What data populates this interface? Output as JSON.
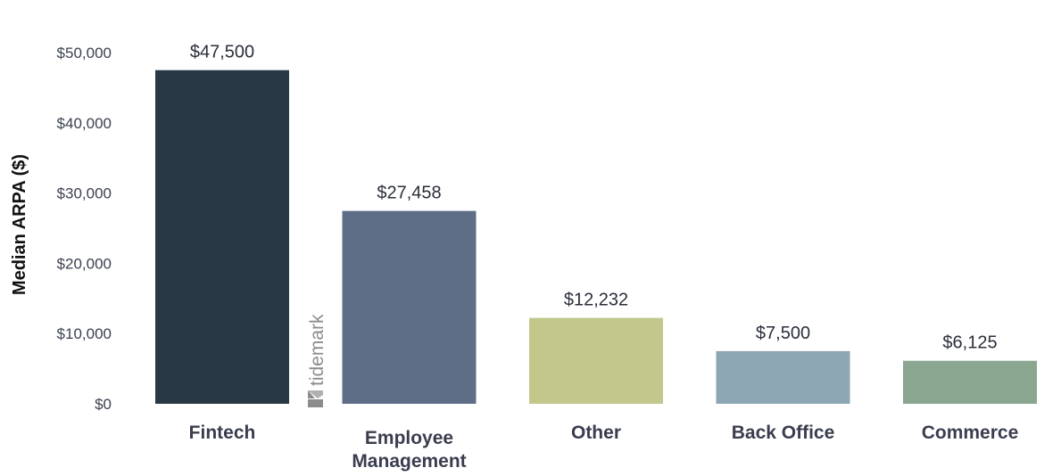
{
  "chart_data": {
    "type": "bar",
    "ylabel": "Median ARPA ($)",
    "ylim": [
      0,
      50000
    ],
    "yticks": [
      0,
      10000,
      20000,
      30000,
      40000,
      50000
    ],
    "ytick_labels": [
      "$0",
      "$10,000",
      "$20,000",
      "$30,000",
      "$40,000",
      "$50,000"
    ],
    "grid": false,
    "legend": "none",
    "categories": [
      {
        "label": [
          "Fintech"
        ],
        "value": 47500,
        "value_label": "$47,500",
        "color": "#283845"
      },
      {
        "label": [
          "Employee",
          "Management"
        ],
        "value": 27458,
        "value_label": "$27,458",
        "color": "#5e6e87"
      },
      {
        "label": [
          "Other"
        ],
        "value": 12232,
        "value_label": "$12,232",
        "color": "#c2c78c"
      },
      {
        "label": [
          "Back Office"
        ],
        "value": 7500,
        "value_label": "$7,500",
        "color": "#8da6b3"
      },
      {
        "label": [
          "Commerce"
        ],
        "value": 6125,
        "value_label": "$6,125",
        "color": "#8aa690"
      }
    ]
  },
  "watermark": {
    "text": "tidemark",
    "icon": "tidemark-logo-icon"
  }
}
